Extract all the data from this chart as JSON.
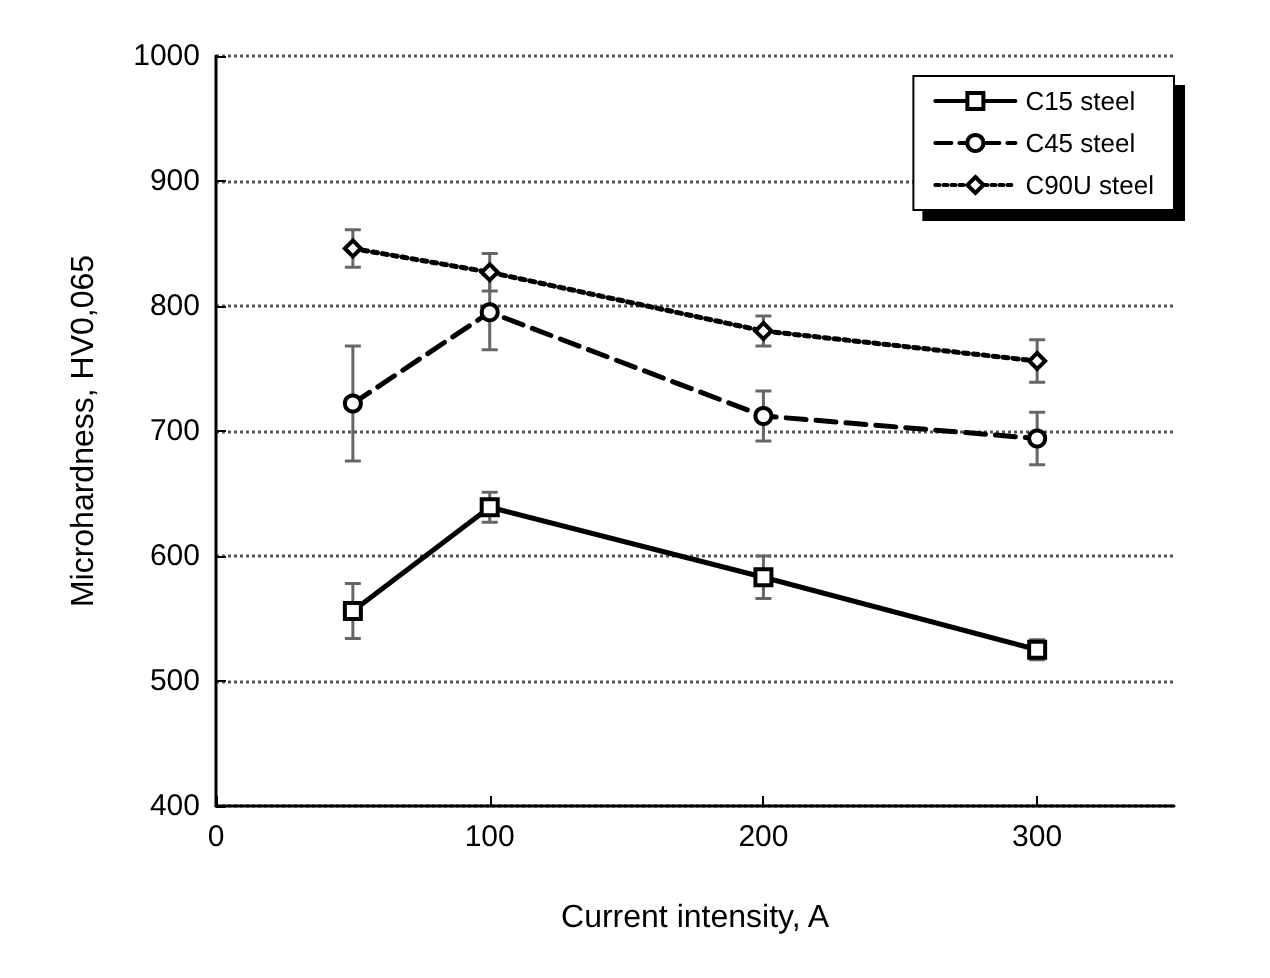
{
  "chart_data": {
    "type": "line",
    "xlabel": "Current intensity, A",
    "ylabel": "Microhardness, HV0,065",
    "x": [
      50,
      100,
      200,
      300
    ],
    "xlim": [
      0,
      350
    ],
    "xticks": [
      0,
      100,
      200,
      300
    ],
    "ylim": [
      400,
      1000
    ],
    "yticks": [
      400,
      500,
      600,
      700,
      800,
      900,
      1000
    ],
    "grid": "y",
    "legend": "top right",
    "series": [
      {
        "name": "C15 steel",
        "color": "#000000",
        "marker": "square",
        "line_style": "solid",
        "values": [
          556,
          639,
          583,
          525
        ],
        "errors": [
          22,
          12,
          17,
          8
        ]
      },
      {
        "name": "C45 steel",
        "color": "#000000",
        "marker": "circle",
        "line_style": "dashed",
        "values": [
          722,
          795,
          712,
          694
        ],
        "errors": [
          46,
          30,
          20,
          21
        ]
      },
      {
        "name": "C90U steel",
        "color": "#000000",
        "marker": "diamond",
        "line_style": "dotted",
        "values": [
          846,
          827,
          780,
          756
        ],
        "errors": [
          15,
          15,
          12,
          17
        ]
      }
    ]
  }
}
